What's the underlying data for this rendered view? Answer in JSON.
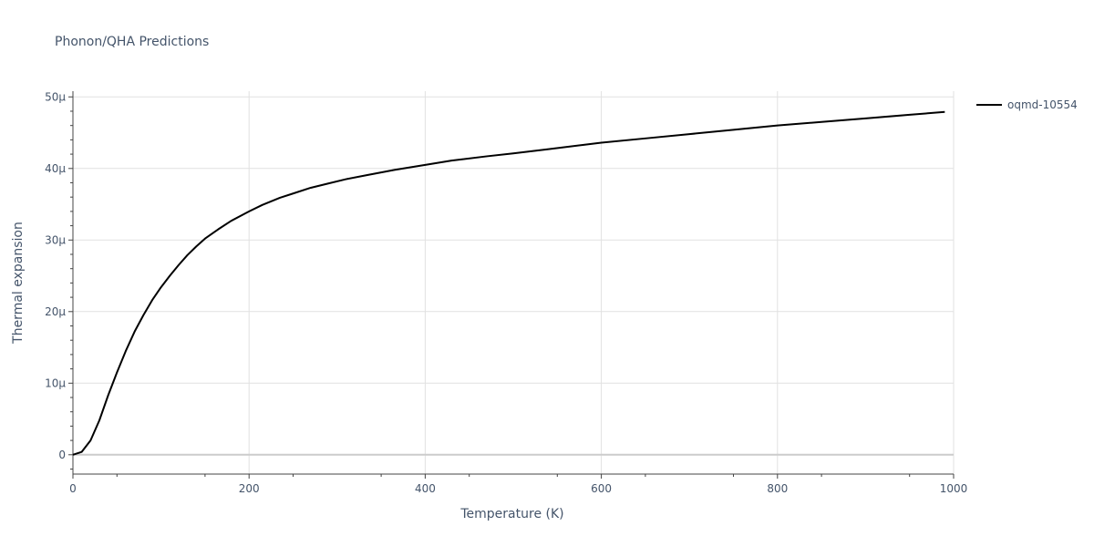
{
  "chart_data": {
    "type": "line",
    "title": "Phonon/QHA Predictions",
    "xlabel": "Temperature (K)",
    "ylabel": "Thermal expansion",
    "xlim": [
      0,
      1000
    ],
    "ylim": [
      -2.7e-06,
      5.08e-05
    ],
    "x_ticks": [
      0,
      200,
      400,
      600,
      800,
      1000
    ],
    "x_tick_labels": [
      "0",
      "200",
      "400",
      "600",
      "800",
      "1000"
    ],
    "y_ticks": [
      0,
      1e-05,
      2e-05,
      3e-05,
      4e-05,
      5e-05
    ],
    "y_tick_labels": [
      "0",
      "10μ",
      "20μ",
      "30μ",
      "40μ",
      "50μ"
    ],
    "grid": true,
    "legend_position": "top-right",
    "series": [
      {
        "name": "oqmd-10554",
        "color": "#000000",
        "x": [
          0,
          10,
          20,
          30,
          40,
          50,
          60,
          70,
          80,
          90,
          100,
          110,
          120,
          130,
          140,
          150,
          165,
          180,
          200,
          215,
          235,
          250,
          270,
          290,
          310,
          335,
          365,
          400,
          430,
          470,
          500,
          540,
          580,
          600,
          650,
          700,
          750,
          800,
          850,
          900,
          950,
          990
        ],
        "y": [
          0,
          4e-07,
          2e-06,
          4.8e-06,
          8.3e-06,
          1.15e-05,
          1.45e-05,
          1.72e-05,
          1.95e-05,
          2.16e-05,
          2.34e-05,
          2.5e-05,
          2.65e-05,
          2.79e-05,
          2.91e-05,
          3.02e-05,
          3.15e-05,
          3.27e-05,
          3.4e-05,
          3.49e-05,
          3.59e-05,
          3.65e-05,
          3.73e-05,
          3.79e-05,
          3.85e-05,
          3.91e-05,
          3.98e-05,
          4.05e-05,
          4.11e-05,
          4.17e-05,
          4.21e-05,
          4.27e-05,
          4.33e-05,
          4.36e-05,
          4.42e-05,
          4.48e-05,
          4.54e-05,
          4.6e-05,
          4.65e-05,
          4.7e-05,
          4.75e-05,
          4.79e-05
        ]
      }
    ]
  }
}
